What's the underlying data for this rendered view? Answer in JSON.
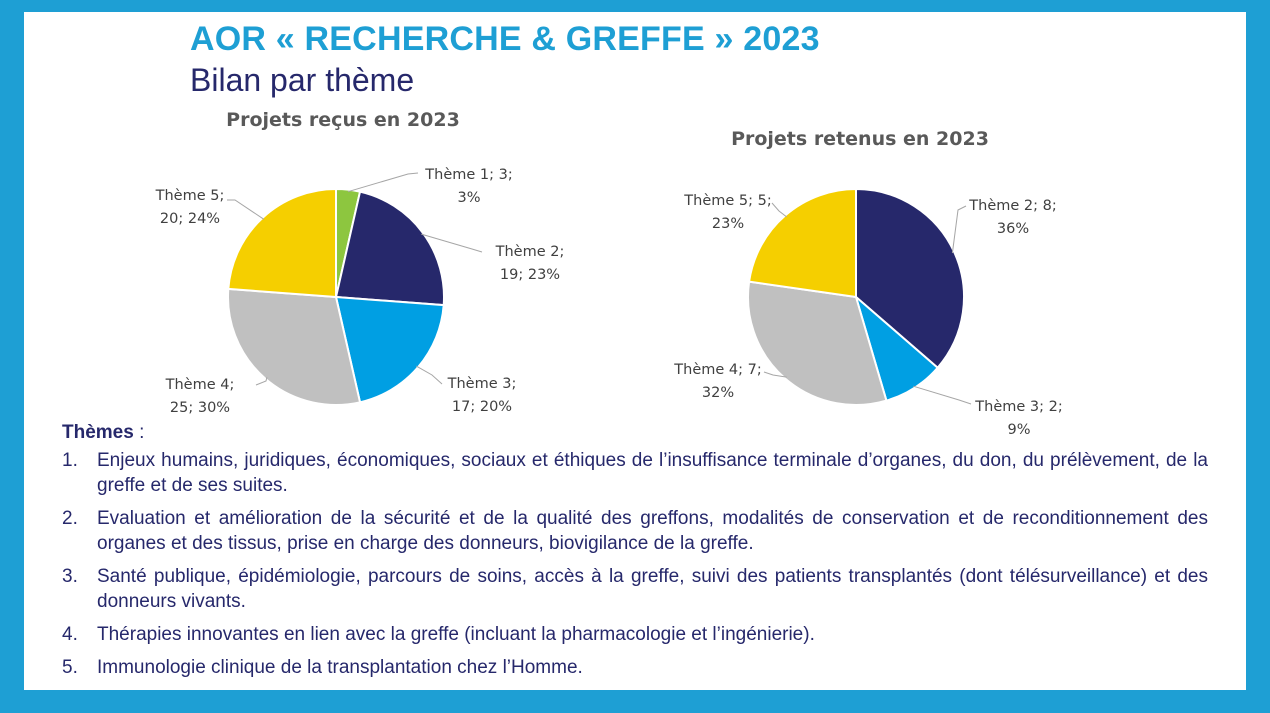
{
  "header": {
    "title": "AOR « RECHERCHE & GREFFE » 2023",
    "subtitle": "Bilan par thème"
  },
  "colors": {
    "border": "#1e9fd4",
    "title": "#1e9fd4",
    "navy": "#26286b",
    "theme1": "#8dc63f",
    "theme2": "#26286b",
    "theme3": "#009fe3",
    "theme4": "#c0c0c0",
    "theme5": "#f5cf00"
  },
  "chart_data": [
    {
      "type": "pie",
      "title": "Projets reçus en 2023",
      "slices": [
        {
          "label": "Thème 1",
          "value": 3,
          "percent": "3%",
          "line1": "Thème 1; 3;",
          "line2": "3%"
        },
        {
          "label": "Thème 2",
          "value": 19,
          "percent": "23%",
          "line1": "Thème 2;",
          "line2": "19; 23%"
        },
        {
          "label": "Thème 3",
          "value": 17,
          "percent": "20%",
          "line1": "Thème 3;",
          "line2": "17; 20%"
        },
        {
          "label": "Thème 4",
          "value": 25,
          "percent": "30%",
          "line1": "Thème 4;",
          "line2": "25; 30%"
        },
        {
          "label": "Thème 5",
          "value": 20,
          "percent": "24%",
          "line1": "Thème 5;",
          "line2": "20; 24%"
        }
      ]
    },
    {
      "type": "pie",
      "title": "Projets retenus en 2023",
      "slices": [
        {
          "label": "Thème 2",
          "value": 8,
          "percent": "36%",
          "line1": "Thème 2; 8;",
          "line2": "36%"
        },
        {
          "label": "Thème 3",
          "value": 2,
          "percent": "9%",
          "line1": "Thème 3; 2;",
          "line2": "9%"
        },
        {
          "label": "Thème 4",
          "value": 7,
          "percent": "32%",
          "line1": "Thème 4; 7;",
          "line2": "32%"
        },
        {
          "label": "Thème 5",
          "value": 5,
          "percent": "23%",
          "line1": "Thème 5; 5;",
          "line2": "23%"
        }
      ]
    }
  ],
  "themes": {
    "heading": "Thèmes",
    "heading_suffix": " :",
    "items": [
      {
        "num": "1.",
        "text": "Enjeux humains, juridiques, économiques, sociaux et éthiques de l’insuffisance terminale d’organes, du don, du prélèvement, de la greffe et de ses suites."
      },
      {
        "num": "2.",
        "text": "Evaluation et amélioration de la sécurité et de la qualité des greffons, modalités de conservation et de reconditionnement des organes et des tissus, prise en charge des donneurs, biovigilance de la greffe."
      },
      {
        "num": "3.",
        "text": "Santé publique, épidémiologie, parcours de soins, accès à la greffe, suivi des patients transplantés (dont télésurveillance) et des donneurs vivants."
      },
      {
        "num": "4.",
        "text": "Thérapies innovantes en lien avec la greffe (incluant la pharmacologie et l’ingénierie)."
      },
      {
        "num": "5.",
        "text": "Immunologie clinique de la transplantation chez l’Homme."
      }
    ]
  }
}
